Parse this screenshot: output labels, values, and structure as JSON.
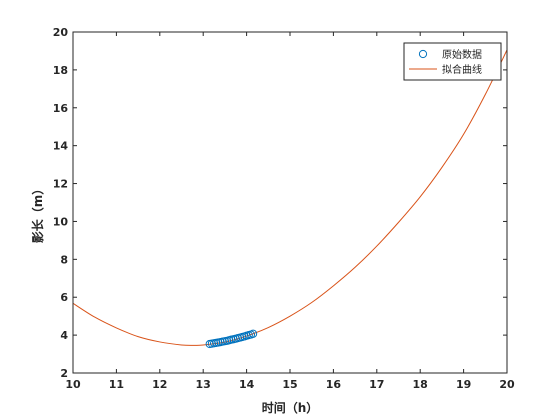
{
  "chart_data": {
    "type": "line",
    "title": "",
    "xlabel": "时间（h）",
    "ylabel": "影长（m）",
    "xlim": [
      10,
      20
    ],
    "ylim": [
      2,
      20
    ],
    "xticks": [
      10,
      11,
      12,
      13,
      14,
      15,
      16,
      17,
      18,
      19,
      20
    ],
    "yticks": [
      2,
      4,
      6,
      8,
      10,
      12,
      14,
      16,
      18,
      20
    ],
    "grid": false,
    "legend_position": "top-right",
    "series": [
      {
        "name": "原始数据",
        "kind": "scatter",
        "marker": "circle",
        "color": "#0072BD",
        "x": [
          13.15,
          13.2,
          13.25,
          13.3,
          13.35,
          13.4,
          13.45,
          13.5,
          13.55,
          13.6,
          13.65,
          13.7,
          13.75,
          13.8,
          13.85,
          13.9,
          13.95,
          14.0,
          14.05,
          14.1,
          14.15
        ],
        "y": [
          3.53,
          3.55,
          3.57,
          3.59,
          3.61,
          3.63,
          3.66,
          3.68,
          3.7,
          3.73,
          3.76,
          3.78,
          3.81,
          3.84,
          3.87,
          3.9,
          3.93,
          3.97,
          4.0,
          4.03,
          4.07
        ]
      },
      {
        "name": "拟合曲线",
        "kind": "line",
        "color": "#D95319",
        "x": [
          10,
          10.5,
          11,
          11.5,
          12,
          12.5,
          12.8,
          13,
          13.5,
          14,
          14.5,
          15,
          15.5,
          16,
          16.5,
          17,
          17.5,
          18,
          18.5,
          19,
          19.5,
          20
        ],
        "y": [
          5.68,
          4.95,
          4.38,
          3.92,
          3.64,
          3.48,
          3.46,
          3.48,
          3.63,
          3.95,
          4.4,
          5.0,
          5.72,
          6.6,
          7.58,
          8.7,
          9.95,
          11.3,
          12.85,
          14.6,
          16.7,
          19.05
        ]
      }
    ]
  }
}
